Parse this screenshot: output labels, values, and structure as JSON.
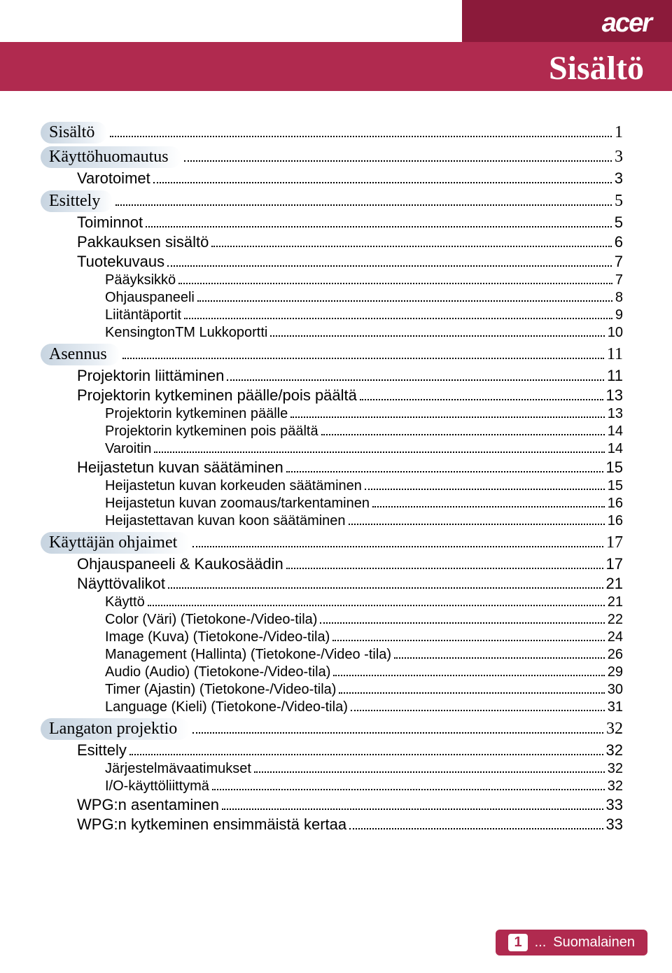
{
  "brand": "acer",
  "title": "Sisältö",
  "colors": {
    "header_dark": "#8b1a3a",
    "header_light": "#b02a4f",
    "pill_start": "#c7d4e0",
    "pill_end": "#e8eef4",
    "text": "#000000",
    "footer_bg": "#b02a4f",
    "footer_text": "#ffffff"
  },
  "toc": [
    {
      "label": "Sisältö",
      "page": "1",
      "level": 0
    },
    {
      "label": "Käyttöhuomautus",
      "page": "3",
      "level": 0
    },
    {
      "label": "Varotoimet",
      "page": "3",
      "level": 1
    },
    {
      "label": "Esittely",
      "page": "5",
      "level": 0
    },
    {
      "label": "Toiminnot",
      "page": "5",
      "level": 1
    },
    {
      "label": "Pakkauksen sisältö",
      "page": "6",
      "level": 1
    },
    {
      "label": "Tuotekuvaus",
      "page": "7",
      "level": 1
    },
    {
      "label": "Pääyksikkö",
      "page": "7",
      "level": 2
    },
    {
      "label": "Ohjauspaneeli",
      "page": "8",
      "level": 2
    },
    {
      "label": "Liitäntäportit",
      "page": "9",
      "level": 2
    },
    {
      "label": "KensingtonTM Lukkoportti",
      "page": "10",
      "level": 2
    },
    {
      "label": "Asennus",
      "page": "11",
      "level": 0
    },
    {
      "label": "Projektorin liittäminen",
      "page": "11",
      "level": 1
    },
    {
      "label": "Projektorin kytkeminen päälle/pois päältä",
      "page": "13",
      "level": 1
    },
    {
      "label": "Projektorin kytkeminen päälle",
      "page": "13",
      "level": 2
    },
    {
      "label": "Projektorin kytkeminen pois päältä",
      "page": "14",
      "level": 2
    },
    {
      "label": "Varoitin",
      "page": "14",
      "level": 2
    },
    {
      "label": "Heijastetun kuvan säätäminen",
      "page": "15",
      "level": 1
    },
    {
      "label": "Heijastetun kuvan korkeuden säätäminen",
      "page": "15",
      "level": 2
    },
    {
      "label": "Heijastetun kuvan zoomaus/tarkentaminen",
      "page": "16",
      "level": 2
    },
    {
      "label": "Heijastettavan kuvan koon säätäminen",
      "page": "16",
      "level": 2
    },
    {
      "label": "Käyttäjän ohjaimet",
      "page": "17",
      "level": 0
    },
    {
      "label": "Ohjauspaneeli & Kaukosäädin",
      "page": "17",
      "level": 1
    },
    {
      "label": "Näyttövalikot",
      "page": "21",
      "level": 1
    },
    {
      "label": "Käyttö",
      "page": "21",
      "level": 2
    },
    {
      "label": "Color (Väri) (Tietokone-/Video-tila)",
      "page": "22",
      "level": 2
    },
    {
      "label": "Image (Kuva) (Tietokone-/Video-tila)",
      "page": "24",
      "level": 2
    },
    {
      "label": "Management (Hallinta) (Tietokone-/Video -tila)",
      "page": "26",
      "level": 2
    },
    {
      "label": "Audio (Audio) (Tietokone-/Video-tila)",
      "page": "29",
      "level": 2
    },
    {
      "label": "Timer (Ajastin) (Tietokone-/Video-tila)",
      "page": "30",
      "level": 2
    },
    {
      "label": "Language (Kieli) (Tietokone-/Video-tila)",
      "page": "31",
      "level": 2
    },
    {
      "label": "Langaton projektio",
      "page": "32",
      "level": 0
    },
    {
      "label": "Esittely",
      "page": "32",
      "level": 1
    },
    {
      "label": "Järjestelmävaatimukset",
      "page": "32",
      "level": 2
    },
    {
      "label": "I/O-käyttöliittymä",
      "page": "32",
      "level": 2
    },
    {
      "label": "WPG:n asentaminen",
      "page": "33",
      "level": 1
    },
    {
      "label": "WPG:n kytkeminen ensimmäistä kertaa",
      "page": "33",
      "level": 1
    }
  ],
  "footer": {
    "page_num": "1",
    "ellipsis": "...",
    "lang": "Suomalainen"
  }
}
